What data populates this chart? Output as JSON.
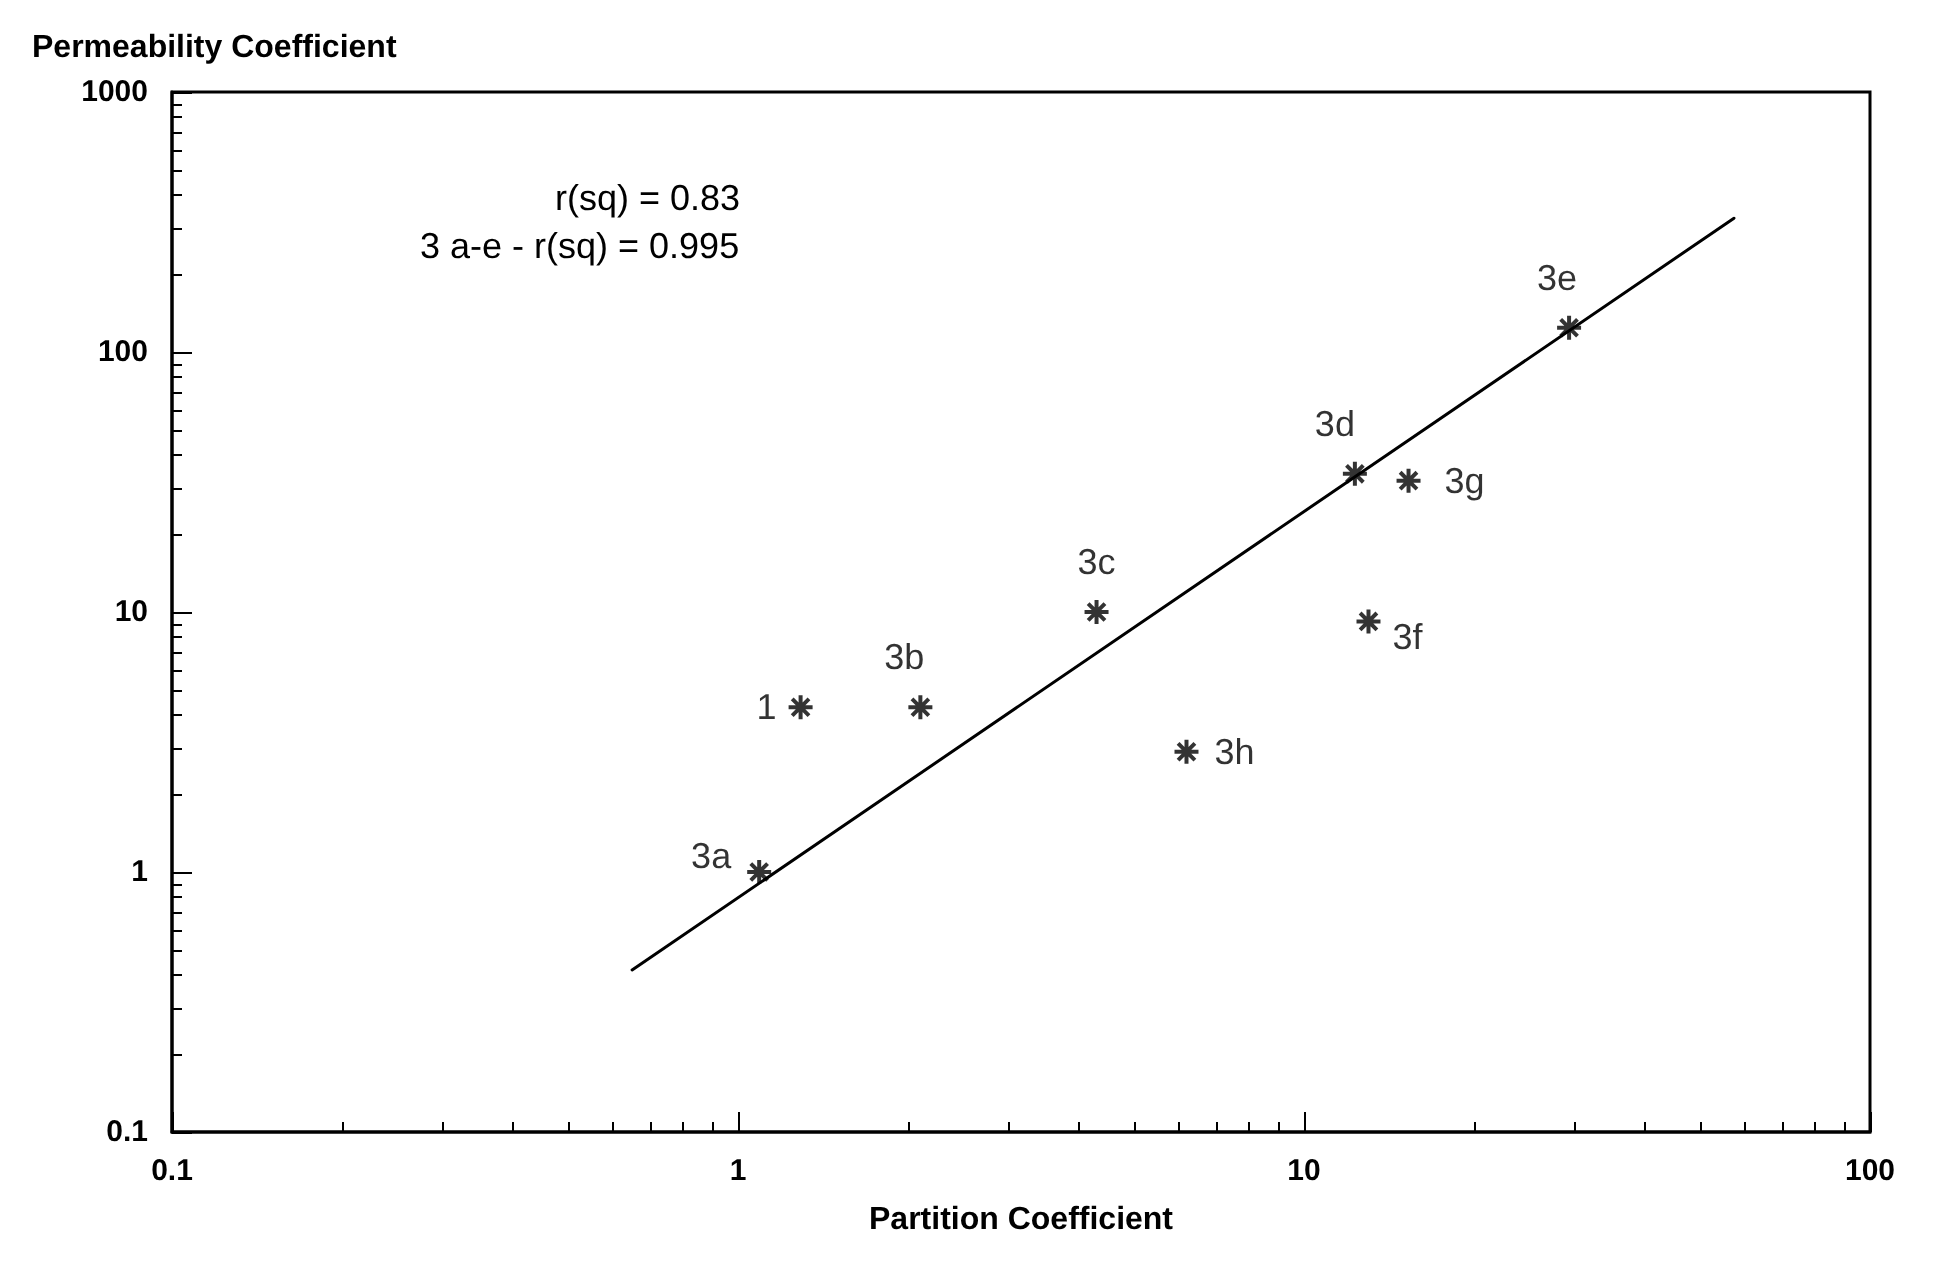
{
  "chart_data": {
    "type": "scatter",
    "xlabel": "Partition Coefficient",
    "ylabel": "Permeability Coefficient",
    "log": "xy",
    "xlim": [
      0.1,
      100
    ],
    "ylim": [
      0.1,
      1000
    ],
    "xticks": [
      0.1,
      1,
      10,
      100
    ],
    "yticks": [
      0.1,
      1,
      10,
      100,
      1000
    ],
    "marker": "cross",
    "grid": false,
    "series": [
      {
        "color": "#000000",
        "x": [
          1.29,
          1.09,
          2.1,
          4.3,
          12.3,
          29.4,
          13,
          15.3,
          6.2
        ],
        "values": [
          4.3,
          1.0,
          4.3,
          10,
          34,
          124,
          9.2,
          32,
          2.9
        ]
      },
      {
        "type": "line",
        "color": "#000000",
        "marker": "none",
        "x": [
          0.65,
          57.5
        ],
        "values": [
          0.42,
          327
        ]
      }
    ],
    "annotations": [
      "r(sq) = 0.83",
      "3 a-e - r(sq) = 0.995",
      {
        "text": "1",
        "x": 1.29,
        "y": 4.3
      },
      {
        "text": "3a",
        "x": 1.09,
        "y": 1.0
      },
      {
        "text": "3b",
        "x": 2.1,
        "y": 4.3
      },
      {
        "text": "3c",
        "x": 4.3,
        "y": 10
      },
      {
        "text": "3d",
        "x": 12.3,
        "y": 34
      },
      {
        "text": "3e",
        "x": 29.4,
        "y": 124
      },
      {
        "text": "3f",
        "x": 13,
        "y": 9.2
      },
      {
        "text": "3g",
        "x": 15.3,
        "y": 32
      },
      {
        "text": "3h",
        "x": 6.2,
        "y": 2.9
      }
    ]
  }
}
